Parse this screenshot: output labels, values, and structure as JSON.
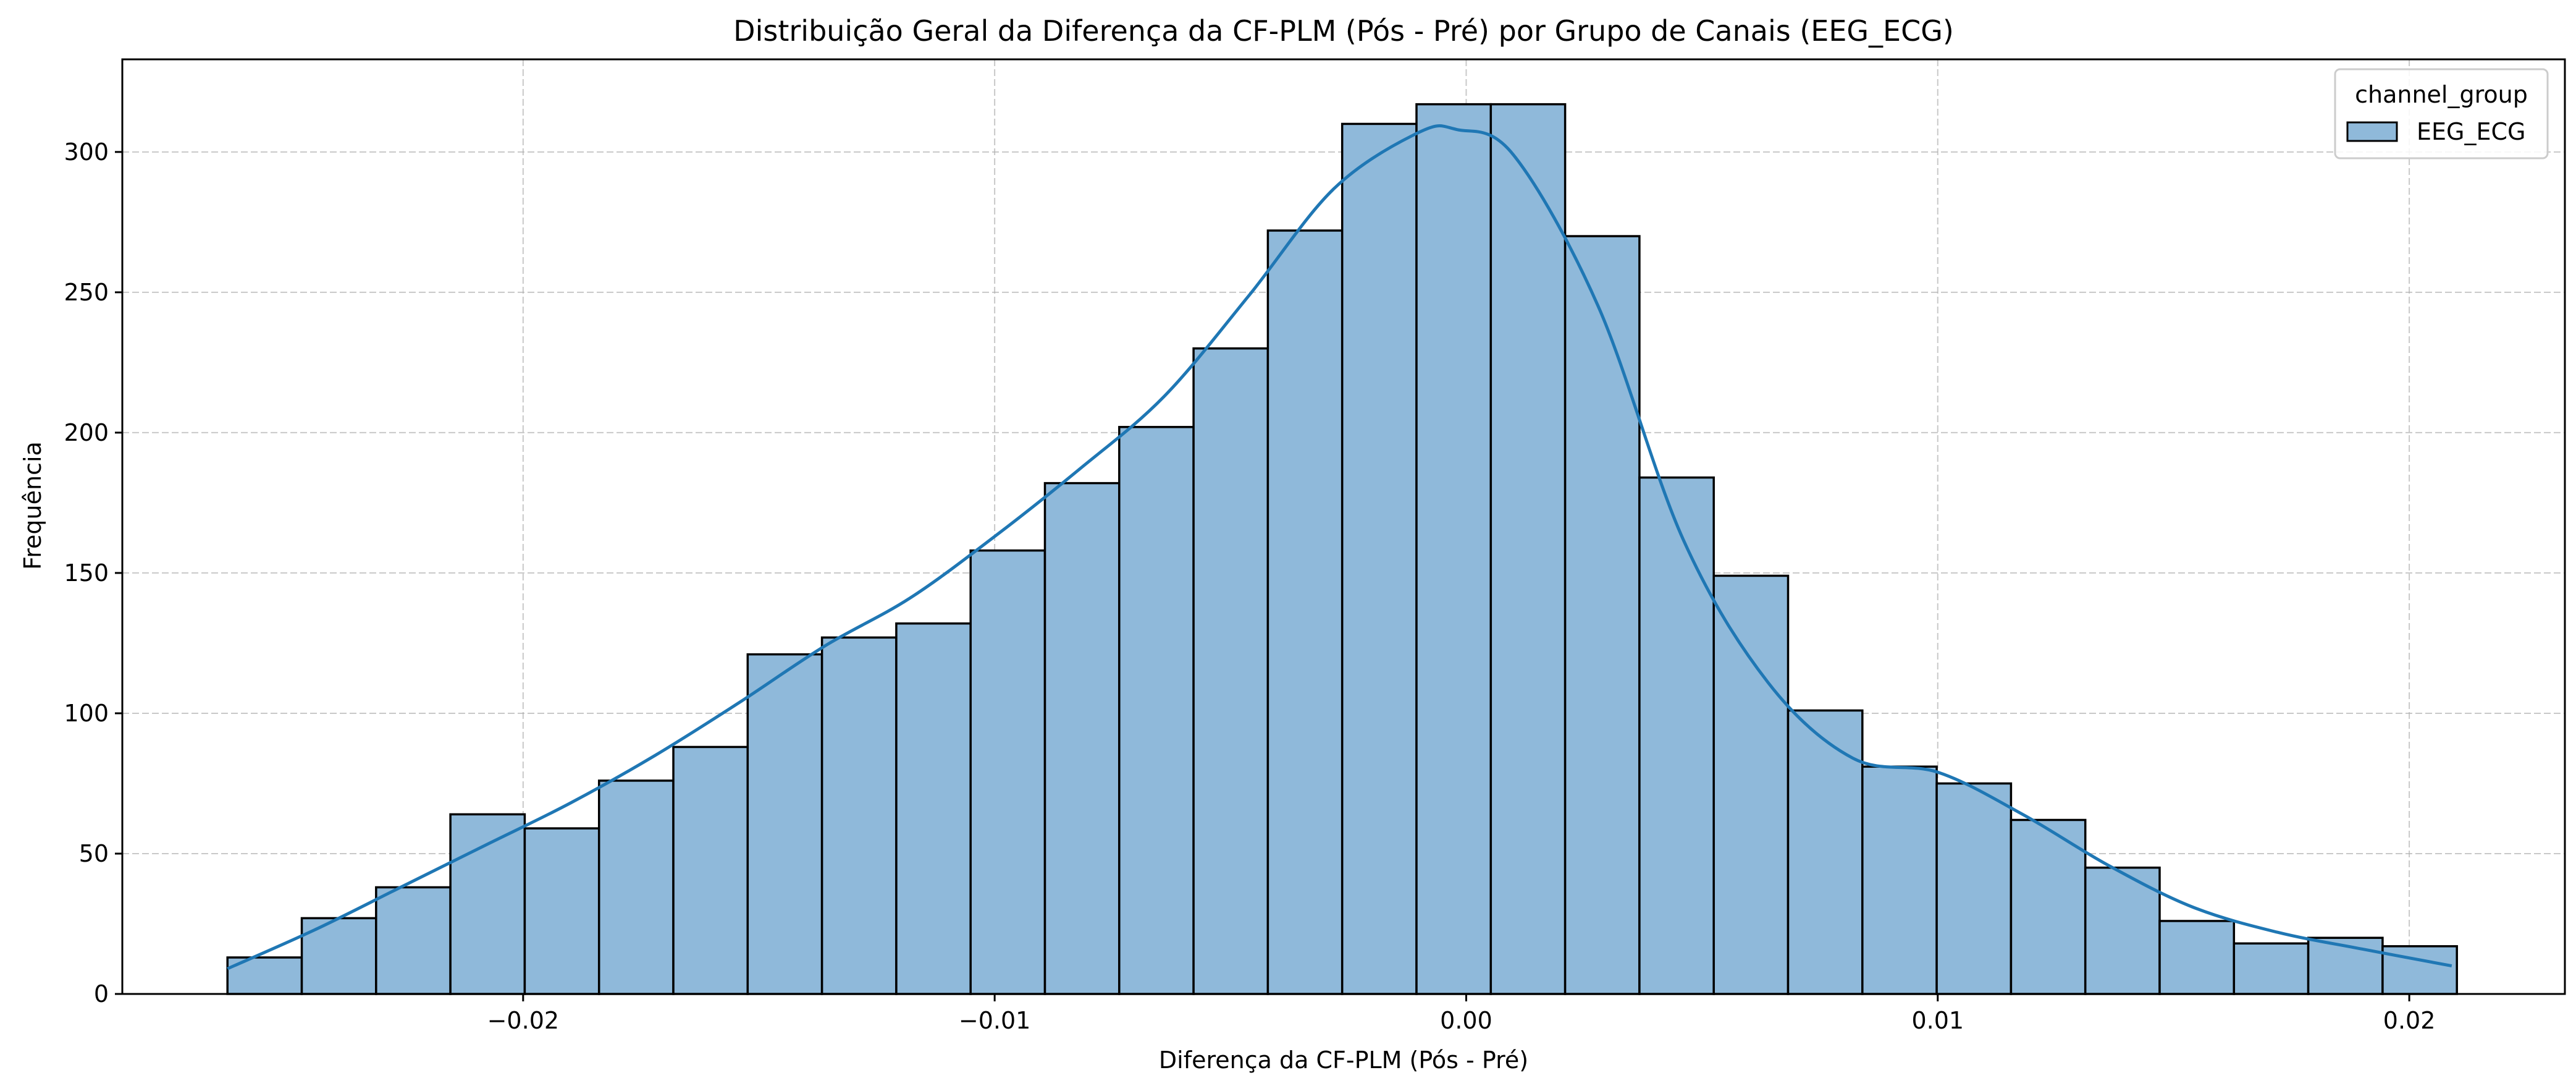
{
  "chart_data": {
    "type": "histogram",
    "title": "Distribuição Geral da Diferença da CF-PLM (Pós - Pré) por Grupo de Canais (EEG_ECG)",
    "xlabel": "Diferença da CF-PLM (Pós - Pré)",
    "ylabel": "Frequência",
    "xlim": [
      -0.0285,
      0.0233
    ],
    "ylim": [
      0,
      333
    ],
    "x_ticks": [
      -0.02,
      -0.01,
      0.0,
      0.01,
      0.02
    ],
    "x_tick_labels": [
      "−0.02",
      "−0.01",
      "0.00",
      "0.01",
      "0.02"
    ],
    "y_ticks": [
      0,
      50,
      100,
      150,
      200,
      250,
      300
    ],
    "y_tick_labels": [
      "0",
      "50",
      "100",
      "150",
      "200",
      "250",
      "300"
    ],
    "grid": true,
    "legend": {
      "title": "channel_group",
      "placement": "top-right",
      "entries": [
        "EEG_ECG"
      ]
    },
    "bin_start": -0.02627,
    "bin_width": 0.001576,
    "series": [
      {
        "name": "EEG_ECG",
        "bar_color": "#8fb9da",
        "edge_color": "#000000",
        "kde_color": "#1f77b4",
        "values": [
          13,
          27,
          38,
          64,
          59,
          76,
          88,
          121,
          127,
          132,
          158,
          182,
          202,
          230,
          272,
          310,
          317,
          317,
          270,
          184,
          149,
          101,
          81,
          75,
          62,
          45,
          26,
          18,
          20,
          17
        ],
        "kde": {
          "x": [
            -0.02627,
            -0.0244,
            -0.0226,
            -0.0208,
            -0.019,
            -0.0172,
            -0.0154,
            -0.0136,
            -0.0118,
            -0.01,
            -0.0082,
            -0.0064,
            -0.0046,
            -0.0028,
            -0.001,
            -0.0002,
            0.001,
            0.0028,
            0.0046,
            0.0064,
            0.0082,
            0.01,
            0.0118,
            0.0136,
            0.0154,
            0.0172,
            0.019,
            0.0209
          ],
          "y": [
            9,
            23,
            38,
            53,
            68,
            85,
            104,
            124,
            141,
            163,
            187,
            213,
            249,
            287,
            307,
            308,
            299,
            245,
            162,
            111,
            84,
            79,
            64,
            46,
            31,
            22,
            16,
            10
          ]
        }
      }
    ]
  }
}
